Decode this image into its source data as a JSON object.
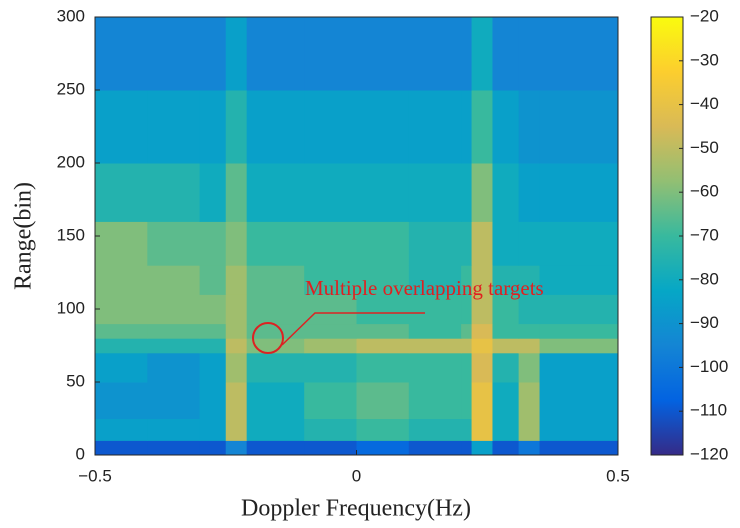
{
  "chart_data": {
    "type": "heatmap",
    "xlabel": "Doppler Frequency(Hz)",
    "ylabel": "Range(bin)",
    "annotation": "Multiple overlapping targets",
    "colormap": "parula",
    "xlim": [
      -0.5,
      0.5
    ],
    "ylim": [
      0,
      300
    ],
    "xticks": [
      {
        "value": -0.5,
        "label": "−0.5"
      },
      0,
      0.5
    ],
    "yticks": [
      0,
      50,
      100,
      150,
      200,
      250,
      300
    ],
    "clim": [
      -120,
      -20
    ],
    "cticks": [
      {
        "value": -20,
        "label": "−20"
      },
      {
        "value": -30,
        "label": "−30"
      },
      {
        "value": -40,
        "label": "−40"
      },
      {
        "value": -50,
        "label": "−50"
      },
      {
        "value": -60,
        "label": "−60"
      },
      {
        "value": -70,
        "label": "−70"
      },
      {
        "value": -80,
        "label": "−80"
      },
      {
        "value": -90,
        "label": "−90"
      },
      {
        "value": -100,
        "label": "−100"
      },
      {
        "value": -110,
        "label": "−110"
      },
      {
        "value": -120,
        "label": "−120"
      }
    ],
    "xbins": [
      -0.5,
      -0.4,
      -0.3,
      -0.25,
      -0.21,
      -0.1,
      0,
      0.1,
      0.2,
      0.22,
      0.26,
      0.31,
      0.35,
      0.5
    ],
    "ybins": [
      0,
      10,
      25,
      50,
      70,
      80,
      90,
      110,
      130,
      160,
      200,
      250,
      300
    ],
    "z": [
      [
        -110,
        -110,
        -110,
        -95,
        -110,
        -110,
        -105,
        -110,
        -110,
        -85,
        -110,
        -100,
        -110
      ],
      [
        -85,
        -85,
        -85,
        -50,
        -80,
        -75,
        -70,
        -75,
        -75,
        -40,
        -80,
        -55,
        -85
      ],
      [
        -90,
        -90,
        -85,
        -50,
        -80,
        -70,
        -65,
        -70,
        -70,
        -40,
        -80,
        -55,
        -85
      ],
      [
        -85,
        -90,
        -85,
        -55,
        -75,
        -75,
        -70,
        -70,
        -70,
        -45,
        -75,
        -60,
        -85
      ],
      [
        -75,
        -75,
        -75,
        -50,
        -60,
        -55,
        -50,
        -50,
        -50,
        -40,
        -50,
        -50,
        -60
      ],
      [
        -65,
        -65,
        -65,
        -55,
        -65,
        -65,
        -65,
        -70,
        -65,
        -45,
        -70,
        -70,
        -70
      ],
      [
        -60,
        -60,
        -60,
        -55,
        -65,
        -65,
        -70,
        -70,
        -70,
        -50,
        -70,
        -75,
        -75
      ],
      [
        -60,
        -60,
        -65,
        -55,
        -65,
        -70,
        -70,
        -75,
        -70,
        -50,
        -75,
        -75,
        -80
      ],
      [
        -60,
        -65,
        -65,
        -60,
        -70,
        -70,
        -70,
        -75,
        -75,
        -50,
        -80,
        -80,
        -80
      ],
      [
        -75,
        -75,
        -80,
        -65,
        -80,
        -80,
        -80,
        -80,
        -80,
        -60,
        -80,
        -85,
        -85
      ],
      [
        -85,
        -85,
        -85,
        -75,
        -85,
        -85,
        -85,
        -85,
        -85,
        -70,
        -85,
        -90,
        -90
      ],
      [
        -95,
        -95,
        -95,
        -85,
        -95,
        -95,
        -95,
        -95,
        -95,
        -80,
        -95,
        -95,
        -95
      ]
    ]
  }
}
